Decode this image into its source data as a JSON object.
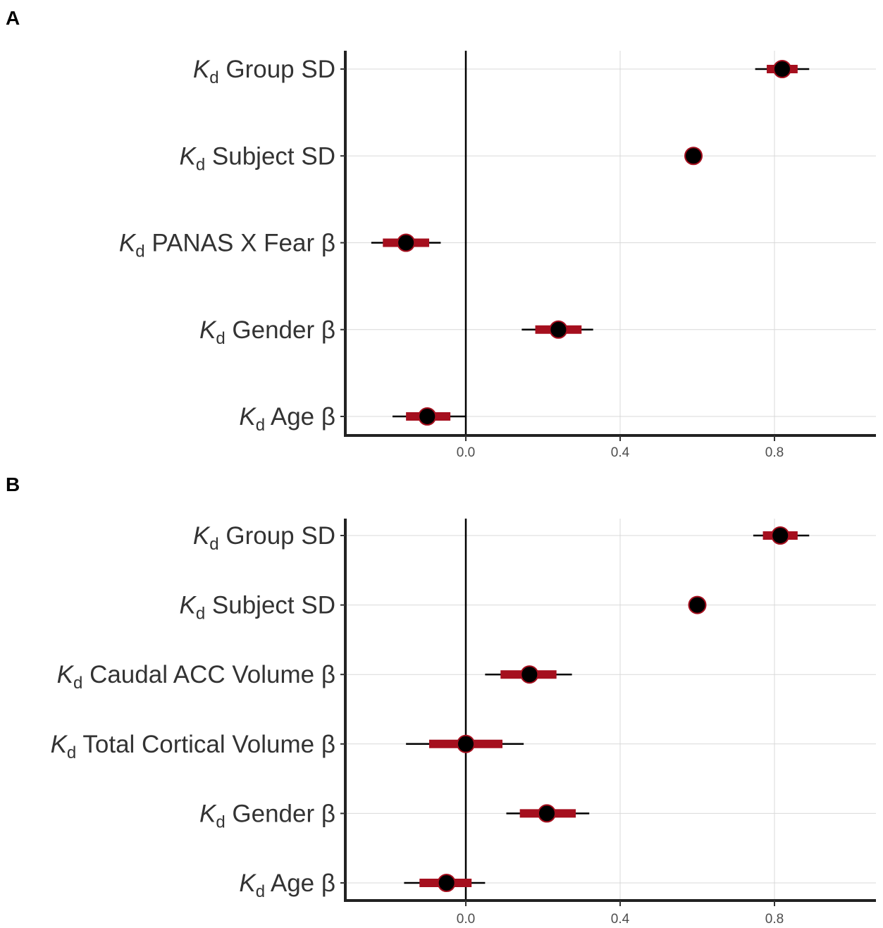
{
  "colors": {
    "interval_inner": "#a50f1e",
    "interval_outer": "#000000",
    "point": "#000000",
    "grid": "#d9d9d9"
  },
  "chart_data": [
    {
      "panel": "A",
      "type": "interval",
      "x_ticks": [
        "0.0",
        "0.4",
        "0.8"
      ],
      "xlim": [
        -0.31,
        1.06
      ],
      "grid": true,
      "reference_line_x": 0,
      "categories": [
        {
          "prefix": "K",
          "sub": "d",
          "label": " Group SD",
          "estimate": 0.82,
          "inner": [
            0.78,
            0.86
          ],
          "outer": [
            0.75,
            0.89
          ]
        },
        {
          "prefix": "K",
          "sub": "d",
          "label": " Subject SD",
          "estimate": 0.59,
          "inner": [
            0.59,
            0.59
          ],
          "outer": [
            0.59,
            0.59
          ]
        },
        {
          "prefix": "K",
          "sub": "d",
          "label": " PANAS X Fear β",
          "estimate": -0.155,
          "inner": [
            -0.215,
            -0.095
          ],
          "outer": [
            -0.245,
            -0.065
          ]
        },
        {
          "prefix": "K",
          "sub": "d",
          "label": " Gender β",
          "estimate": 0.24,
          "inner": [
            0.18,
            0.3
          ],
          "outer": [
            0.145,
            0.33
          ]
        },
        {
          "prefix": "K",
          "sub": "d",
          "label": " Age β",
          "estimate": -0.1,
          "inner": [
            -0.155,
            -0.04
          ],
          "outer": [
            -0.19,
            0.0
          ]
        }
      ]
    },
    {
      "panel": "B",
      "type": "interval",
      "x_ticks": [
        "0.0",
        "0.4",
        "0.8"
      ],
      "xlim": [
        -0.31,
        1.06
      ],
      "grid": true,
      "reference_line_x": 0,
      "categories": [
        {
          "prefix": "K",
          "sub": "d",
          "label": " Group SD",
          "estimate": 0.815,
          "inner": [
            0.77,
            0.86
          ],
          "outer": [
            0.745,
            0.89
          ]
        },
        {
          "prefix": "K",
          "sub": "d",
          "label": " Subject SD",
          "estimate": 0.6,
          "inner": [
            0.6,
            0.6
          ],
          "outer": [
            0.6,
            0.6
          ]
        },
        {
          "prefix": "K",
          "sub": "d",
          "label": " Caudal ACC Volume β",
          "estimate": 0.165,
          "inner": [
            0.09,
            0.235
          ],
          "outer": [
            0.05,
            0.275
          ]
        },
        {
          "prefix": "K",
          "sub": "d",
          "label": " Total Cortical Volume β",
          "estimate": 0.0,
          "inner": [
            -0.095,
            0.095
          ],
          "outer": [
            -0.155,
            0.15
          ]
        },
        {
          "prefix": "K",
          "sub": "d",
          "label": " Gender β",
          "estimate": 0.21,
          "inner": [
            0.14,
            0.285
          ],
          "outer": [
            0.105,
            0.32
          ]
        },
        {
          "prefix": "K",
          "sub": "d",
          "label": " Age β",
          "estimate": -0.05,
          "inner": [
            -0.12,
            0.015
          ],
          "outer": [
            -0.16,
            0.05
          ]
        }
      ]
    }
  ]
}
